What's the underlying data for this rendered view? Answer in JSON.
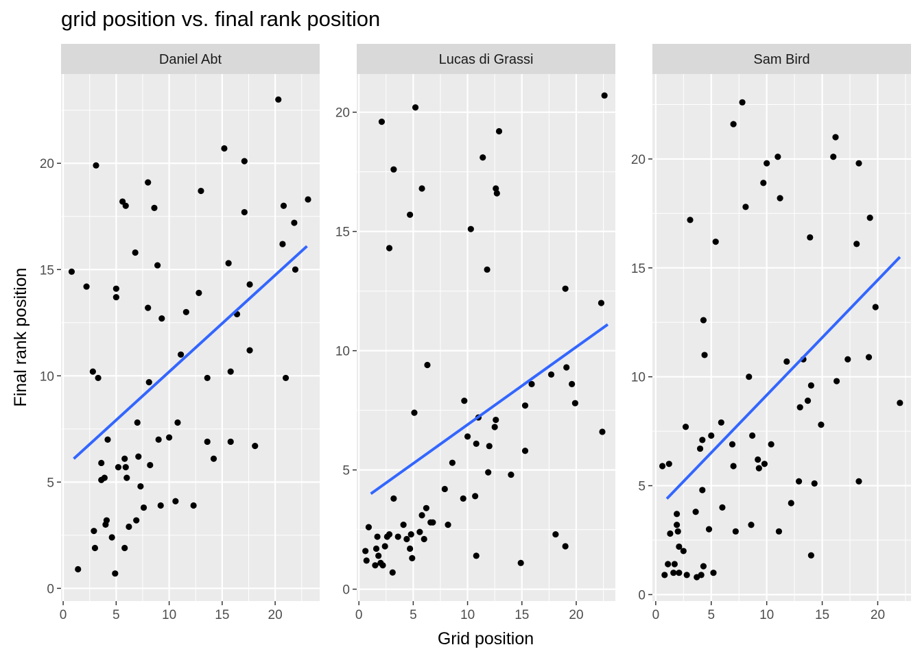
{
  "title": "grid position vs. final rank position",
  "chart_data": {
    "type": "scatter",
    "xlabel": "Grid position",
    "ylabel": "Final rank position",
    "grid": true,
    "trend": "linear fit (blue)",
    "colors": {
      "points": "#000000",
      "trend": "#3366FF",
      "panel_bg": "#EBEBEB",
      "strip_bg": "#D9D9D9",
      "grid": "#FFFFFF"
    },
    "panels": [
      {
        "name": "Daniel Abt",
        "xlim": [
          -0.2,
          24.2
        ],
        "ylim": [
          -0.6,
          24.2
        ],
        "xticks": [
          0,
          5,
          10,
          15,
          20
        ],
        "yticks": [
          0,
          5,
          10,
          15,
          20
        ],
        "trend_line": [
          [
            1.0,
            6.1
          ],
          [
            23.0,
            16.1
          ]
        ],
        "points": [
          [
            0.8,
            14.9
          ],
          [
            1.4,
            0.9
          ],
          [
            2.2,
            14.2
          ],
          [
            2.8,
            10.2
          ],
          [
            2.9,
            2.7
          ],
          [
            3.0,
            1.9
          ],
          [
            3.1,
            19.9
          ],
          [
            3.3,
            9.9
          ],
          [
            3.6,
            5.9
          ],
          [
            3.6,
            5.1
          ],
          [
            3.9,
            5.2
          ],
          [
            4.0,
            3.0
          ],
          [
            4.1,
            3.2
          ],
          [
            4.2,
            7.0
          ],
          [
            4.6,
            2.4
          ],
          [
            4.9,
            0.7
          ],
          [
            5.0,
            14.1
          ],
          [
            5.0,
            13.7
          ],
          [
            5.2,
            5.7
          ],
          [
            5.6,
            18.2
          ],
          [
            5.8,
            6.1
          ],
          [
            5.8,
            1.9
          ],
          [
            5.9,
            5.7
          ],
          [
            5.9,
            18.0
          ],
          [
            6.0,
            5.2
          ],
          [
            6.2,
            2.9
          ],
          [
            6.8,
            15.8
          ],
          [
            6.9,
            3.2
          ],
          [
            7.0,
            7.8
          ],
          [
            7.1,
            6.2
          ],
          [
            7.3,
            4.8
          ],
          [
            7.6,
            3.8
          ],
          [
            8.0,
            19.1
          ],
          [
            8.0,
            13.2
          ],
          [
            8.1,
            9.7
          ],
          [
            8.2,
            5.8
          ],
          [
            8.6,
            17.9
          ],
          [
            8.9,
            15.2
          ],
          [
            9.0,
            7.0
          ],
          [
            9.2,
            3.9
          ],
          [
            9.3,
            12.7
          ],
          [
            10.0,
            7.1
          ],
          [
            10.6,
            4.1
          ],
          [
            10.8,
            7.8
          ],
          [
            11.1,
            11.0
          ],
          [
            11.6,
            13.0
          ],
          [
            12.3,
            3.9
          ],
          [
            12.8,
            13.9
          ],
          [
            13.0,
            18.7
          ],
          [
            13.6,
            6.9
          ],
          [
            13.6,
            9.9
          ],
          [
            14.2,
            6.1
          ],
          [
            15.2,
            20.7
          ],
          [
            15.6,
            15.3
          ],
          [
            15.8,
            6.9
          ],
          [
            15.8,
            10.2
          ],
          [
            16.4,
            12.9
          ],
          [
            17.1,
            20.1
          ],
          [
            17.1,
            17.7
          ],
          [
            17.6,
            14.3
          ],
          [
            17.6,
            11.2
          ],
          [
            18.1,
            6.7
          ],
          [
            20.3,
            23.0
          ],
          [
            20.7,
            16.2
          ],
          [
            20.8,
            18.0
          ],
          [
            21.0,
            9.9
          ],
          [
            21.8,
            17.2
          ],
          [
            21.9,
            15.0
          ],
          [
            23.1,
            18.3
          ]
        ]
      },
      {
        "name": "Lucas di Grassi",
        "xlim": [
          -0.2,
          23.6
        ],
        "ylim": [
          -0.5,
          21.6
        ],
        "xticks": [
          0,
          5,
          10,
          15,
          20
        ],
        "yticks": [
          0,
          5,
          10,
          15,
          20
        ],
        "trend_line": [
          [
            1.1,
            4.0
          ],
          [
            22.9,
            11.1
          ]
        ],
        "points": [
          [
            0.6,
            1.6
          ],
          [
            0.7,
            1.2
          ],
          [
            0.9,
            2.6
          ],
          [
            1.5,
            1.0
          ],
          [
            1.6,
            1.7
          ],
          [
            1.7,
            2.2
          ],
          [
            1.8,
            1.4
          ],
          [
            2.0,
            1.1
          ],
          [
            2.1,
            19.6
          ],
          [
            2.2,
            1.0
          ],
          [
            2.4,
            1.8
          ],
          [
            2.6,
            2.2
          ],
          [
            2.8,
            14.3
          ],
          [
            2.8,
            2.3
          ],
          [
            3.1,
            0.7
          ],
          [
            3.2,
            3.8
          ],
          [
            3.2,
            17.6
          ],
          [
            3.6,
            2.2
          ],
          [
            4.1,
            2.7
          ],
          [
            4.4,
            2.1
          ],
          [
            4.7,
            15.7
          ],
          [
            4.7,
            1.7
          ],
          [
            4.8,
            2.3
          ],
          [
            4.9,
            1.3
          ],
          [
            5.1,
            7.4
          ],
          [
            5.2,
            20.2
          ],
          [
            5.6,
            2.4
          ],
          [
            5.8,
            16.8
          ],
          [
            5.8,
            3.1
          ],
          [
            6.0,
            2.1
          ],
          [
            6.2,
            3.4
          ],
          [
            6.3,
            9.4
          ],
          [
            6.6,
            2.8
          ],
          [
            6.8,
            2.8
          ],
          [
            7.9,
            4.2
          ],
          [
            8.2,
            2.7
          ],
          [
            8.6,
            5.3
          ],
          [
            9.6,
            3.8
          ],
          [
            9.7,
            7.9
          ],
          [
            10.0,
            6.4
          ],
          [
            10.3,
            15.1
          ],
          [
            10.7,
            3.9
          ],
          [
            10.8,
            1.4
          ],
          [
            10.8,
            6.1
          ],
          [
            11.0,
            7.2
          ],
          [
            11.4,
            18.1
          ],
          [
            11.8,
            13.4
          ],
          [
            11.9,
            4.9
          ],
          [
            12.0,
            6.0
          ],
          [
            12.5,
            6.8
          ],
          [
            12.6,
            16.8
          ],
          [
            12.6,
            7.1
          ],
          [
            12.7,
            16.6
          ],
          [
            12.9,
            19.2
          ],
          [
            14.0,
            4.8
          ],
          [
            14.9,
            1.1
          ],
          [
            15.3,
            7.7
          ],
          [
            15.3,
            5.8
          ],
          [
            15.9,
            8.6
          ],
          [
            17.7,
            9.0
          ],
          [
            18.1,
            2.3
          ],
          [
            19.0,
            12.6
          ],
          [
            19.0,
            1.8
          ],
          [
            19.1,
            9.3
          ],
          [
            19.6,
            8.6
          ],
          [
            19.9,
            7.8
          ],
          [
            22.3,
            12.0
          ],
          [
            22.4,
            6.6
          ],
          [
            22.6,
            20.7
          ]
        ]
      },
      {
        "name": "Sam Bird",
        "xlim": [
          -0.3,
          23.0
        ],
        "ylim": [
          -0.3,
          23.9
        ],
        "xticks": [
          0,
          5,
          10,
          15,
          20
        ],
        "yticks": [
          0,
          5,
          10,
          15,
          20
        ],
        "trend_line": [
          [
            1.0,
            4.4
          ],
          [
            22.0,
            15.5
          ]
        ],
        "points": [
          [
            0.6,
            5.9
          ],
          [
            0.8,
            0.9
          ],
          [
            1.1,
            1.4
          ],
          [
            1.2,
            6.0
          ],
          [
            1.3,
            2.8
          ],
          [
            1.6,
            1.0
          ],
          [
            1.7,
            1.4
          ],
          [
            1.9,
            3.7
          ],
          [
            1.9,
            3.2
          ],
          [
            2.0,
            2.9
          ],
          [
            2.1,
            1.0
          ],
          [
            2.1,
            2.2
          ],
          [
            2.5,
            2.0
          ],
          [
            2.7,
            7.7
          ],
          [
            2.8,
            0.9
          ],
          [
            3.1,
            17.2
          ],
          [
            3.6,
            3.8
          ],
          [
            3.7,
            0.8
          ],
          [
            4.0,
            6.7
          ],
          [
            4.1,
            0.9
          ],
          [
            4.2,
            7.1
          ],
          [
            4.2,
            4.8
          ],
          [
            4.3,
            12.6
          ],
          [
            4.3,
            1.3
          ],
          [
            4.4,
            11.0
          ],
          [
            4.8,
            3.0
          ],
          [
            5.0,
            7.3
          ],
          [
            5.2,
            1.0
          ],
          [
            5.4,
            16.2
          ],
          [
            5.9,
            7.9
          ],
          [
            6.0,
            4.0
          ],
          [
            6.9,
            6.9
          ],
          [
            7.0,
            5.9
          ],
          [
            7.0,
            21.6
          ],
          [
            7.2,
            2.9
          ],
          [
            7.8,
            22.6
          ],
          [
            8.1,
            17.8
          ],
          [
            8.4,
            10.0
          ],
          [
            8.6,
            3.2
          ],
          [
            8.7,
            7.3
          ],
          [
            9.2,
            6.2
          ],
          [
            9.3,
            5.8
          ],
          [
            9.7,
            18.9
          ],
          [
            9.8,
            6.0
          ],
          [
            10.0,
            19.8
          ],
          [
            10.4,
            6.9
          ],
          [
            11.0,
            20.1
          ],
          [
            11.1,
            2.9
          ],
          [
            11.2,
            18.2
          ],
          [
            11.8,
            10.7
          ],
          [
            12.2,
            4.2
          ],
          [
            12.9,
            5.2
          ],
          [
            13.0,
            8.6
          ],
          [
            13.3,
            10.8
          ],
          [
            13.7,
            8.9
          ],
          [
            13.9,
            16.4
          ],
          [
            14.0,
            9.6
          ],
          [
            14.0,
            1.8
          ],
          [
            14.3,
            5.1
          ],
          [
            14.9,
            7.8
          ],
          [
            16.0,
            20.1
          ],
          [
            16.2,
            21.0
          ],
          [
            16.3,
            9.8
          ],
          [
            17.3,
            10.8
          ],
          [
            18.1,
            16.1
          ],
          [
            18.3,
            19.8
          ],
          [
            18.3,
            5.2
          ],
          [
            19.2,
            10.9
          ],
          [
            19.3,
            17.3
          ],
          [
            19.8,
            13.2
          ],
          [
            22.0,
            8.8
          ]
        ]
      }
    ]
  }
}
